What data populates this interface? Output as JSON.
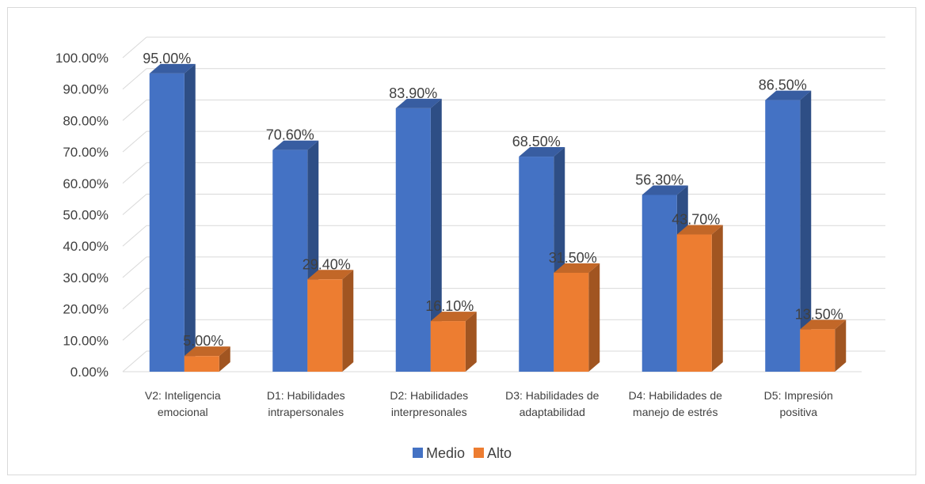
{
  "chart_data": {
    "type": "bar",
    "variant": "3d-clustered-column",
    "categories": [
      [
        "V2: Inteligencia",
        "emocional"
      ],
      [
        "D1: Habilidades",
        "intrapersonales"
      ],
      [
        "D2: Habilidades",
        "interpresonales"
      ],
      [
        "D3: Habilidades de",
        "adaptabilidad"
      ],
      [
        "D4: Habilidades de",
        "manejo de estrés"
      ],
      [
        "D5: Impresión",
        "positiva"
      ]
    ],
    "series": [
      {
        "name": "Medio",
        "color": "#4472c4",
        "values": [
          95.0,
          70.6,
          83.9,
          68.5,
          56.3,
          86.5
        ],
        "labels": [
          "95.00%",
          "70.60%",
          "83.90%",
          "68.50%",
          "56.30%",
          "86.50%"
        ]
      },
      {
        "name": "Alto",
        "color": "#ed7d31",
        "values": [
          5.0,
          29.4,
          16.1,
          31.5,
          43.7,
          13.5
        ],
        "labels": [
          "5.00%",
          "29.40%",
          "16.10%",
          "31.50%",
          "43.70%",
          "13.50%"
        ]
      }
    ],
    "yticks": [
      "0.00%",
      "10.00%",
      "20.00%",
      "30.00%",
      "40.00%",
      "50.00%",
      "60.00%",
      "70.00%",
      "80.00%",
      "90.00%",
      "100.00%"
    ],
    "ylim": [
      0,
      100
    ],
    "grid": true,
    "legend_position": "bottom"
  }
}
